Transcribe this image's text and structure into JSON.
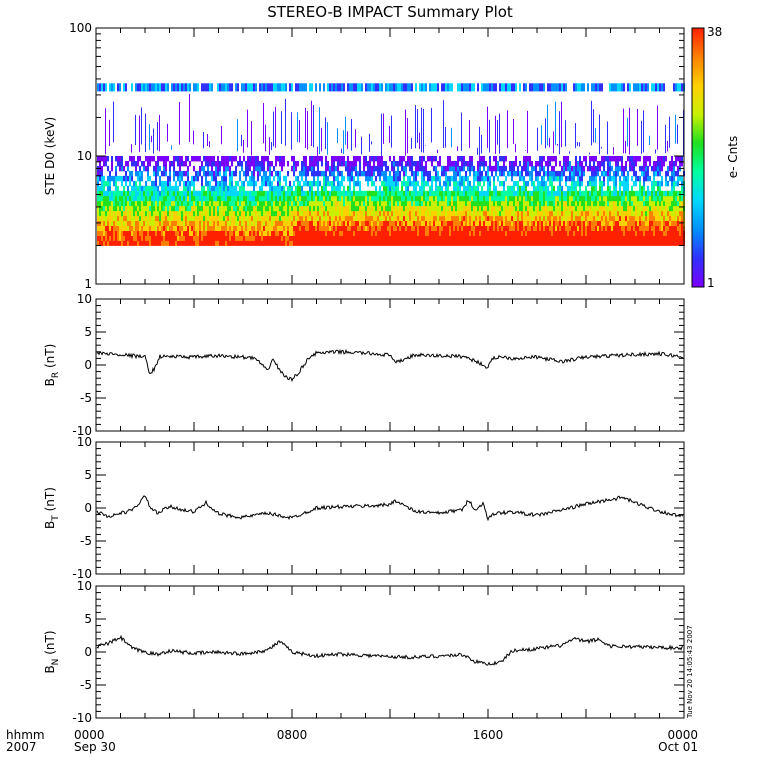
{
  "title": "STEREO-B IMPACT Summary Plot",
  "timestamp": "Tue Nov 20 14:05:43 2007",
  "footer": {
    "row1_label": "hhmm",
    "row2_label": "2007",
    "x_ticks": [
      {
        "hour": 0,
        "line1": "0000",
        "line2": "Sep 30"
      },
      {
        "hour": 8,
        "line1": "0800",
        "line2": ""
      },
      {
        "hour": 16,
        "line1": "1600",
        "line2": ""
      },
      {
        "hour": 24,
        "line1": "0000",
        "line2": "Oct 01"
      }
    ]
  },
  "colorbar": {
    "label": "e- Cnts",
    "max_label": "38",
    "min_label": "1",
    "colors": [
      "#7a00ff",
      "#3030ff",
      "#0090ff",
      "#00d8ff",
      "#00ffa0",
      "#20e020",
      "#c8f000",
      "#ffd000",
      "#ff8000",
      "#ff2000"
    ]
  },
  "chart_data": [
    {
      "type": "heatmap",
      "name": "spectrogram",
      "ylabel": "STE D0 (keV)",
      "yscale": "log",
      "ylim": [
        1,
        100
      ],
      "y_tick_labels": [
        "1",
        "10",
        "100"
      ],
      "xlim_hours": [
        0,
        24
      ],
      "z_range": [
        1,
        38
      ],
      "energy_band_keV": [
        2,
        10
      ],
      "upper_band_keV": [
        32,
        37
      ]
    },
    {
      "type": "line",
      "name": "BR",
      "ylabel_main": "B",
      "ylabel_sub": "R",
      "ylabel_unit": "(nT)",
      "ylim": [
        -10,
        10
      ],
      "y_tick_labels": [
        "-10",
        "-5",
        "0",
        "5",
        "10"
      ],
      "x_hours": [
        0,
        1.0,
        2.0,
        2.2,
        2.4,
        2.6,
        3.0,
        4.0,
        5.0,
        6.0,
        6.5,
        6.7,
        7.0,
        7.2,
        7.5,
        7.8,
        8.0,
        8.3,
        8.7,
        9.0,
        10.0,
        11.0,
        12.0,
        12.2,
        13.0,
        14.0,
        15.0,
        15.5,
        16.0,
        16.2,
        16.5,
        17.0,
        18.0,
        19.0,
        20.0,
        21.0,
        22.0,
        23.0,
        24.0
      ],
      "values": [
        1.8,
        1.6,
        1.2,
        -1.3,
        -0.5,
        1.3,
        1.3,
        1.2,
        1.4,
        1.2,
        1.0,
        0.3,
        -1.0,
        1.0,
        -0.8,
        -2.0,
        -2.2,
        -1.0,
        1.2,
        1.8,
        2.0,
        1.8,
        1.5,
        0.3,
        1.5,
        1.4,
        1.3,
        0.6,
        -0.4,
        1.0,
        1.3,
        1.0,
        1.2,
        0.5,
        1.2,
        1.4,
        1.6,
        1.7,
        1.2
      ]
    },
    {
      "type": "line",
      "name": "BT",
      "ylabel_main": "B",
      "ylabel_sub": "T",
      "ylabel_unit": "(nT)",
      "ylim": [
        -10,
        10
      ],
      "y_tick_labels": [
        "-10",
        "-5",
        "0",
        "5",
        "10"
      ],
      "x_hours": [
        0,
        0.5,
        1.0,
        1.5,
        2.0,
        2.2,
        2.5,
        3.0,
        4.0,
        4.5,
        5.0,
        5.5,
        6.0,
        7.0,
        8.0,
        9.0,
        10.0,
        11.0,
        12.0,
        12.2,
        13.0,
        14.0,
        15.0,
        15.2,
        15.5,
        15.8,
        16.0,
        16.3,
        17.0,
        18.0,
        19.0,
        20.0,
        21.0,
        21.5,
        22.0,
        23.0,
        24.0
      ],
      "values": [
        -0.5,
        -1.3,
        -0.8,
        -0.3,
        1.8,
        0.2,
        -0.8,
        0.2,
        -0.6,
        0.8,
        -0.9,
        -1.2,
        -1.4,
        -0.8,
        -1.5,
        0.0,
        0.2,
        0.3,
        0.5,
        1.2,
        -0.5,
        -0.8,
        -0.2,
        1.4,
        -0.5,
        0.8,
        -1.6,
        -0.8,
        -0.6,
        -1.1,
        -0.3,
        0.6,
        1.3,
        1.6,
        0.8,
        -0.5,
        -1.4
      ]
    },
    {
      "type": "line",
      "name": "BN",
      "ylabel_main": "B",
      "ylabel_sub": "N",
      "ylabel_unit": "(nT)",
      "ylim": [
        -10,
        10
      ],
      "y_tick_labels": [
        "-10",
        "-5",
        "0",
        "5",
        "10"
      ],
      "x_hours": [
        0,
        0.5,
        1.0,
        1.5,
        2.0,
        2.5,
        3.0,
        4.0,
        5.0,
        6.0,
        7.0,
        7.5,
        8.0,
        9.0,
        10.0,
        11.0,
        12.0,
        13.0,
        14.0,
        15.0,
        15.5,
        16.0,
        16.5,
        17.0,
        18.0,
        19.0,
        19.5,
        20.0,
        20.5,
        21.0,
        22.0,
        23.0,
        24.0
      ],
      "values": [
        0.8,
        1.3,
        2.2,
        0.5,
        0.0,
        -0.4,
        0.2,
        -0.2,
        0.0,
        -0.3,
        0.3,
        1.6,
        0.0,
        -0.6,
        -0.3,
        -0.5,
        -0.7,
        -0.8,
        -0.6,
        -0.4,
        -1.5,
        -1.8,
        -1.6,
        0.2,
        0.5,
        1.0,
        2.0,
        1.6,
        1.9,
        0.9,
        0.8,
        0.7,
        0.6
      ]
    }
  ]
}
